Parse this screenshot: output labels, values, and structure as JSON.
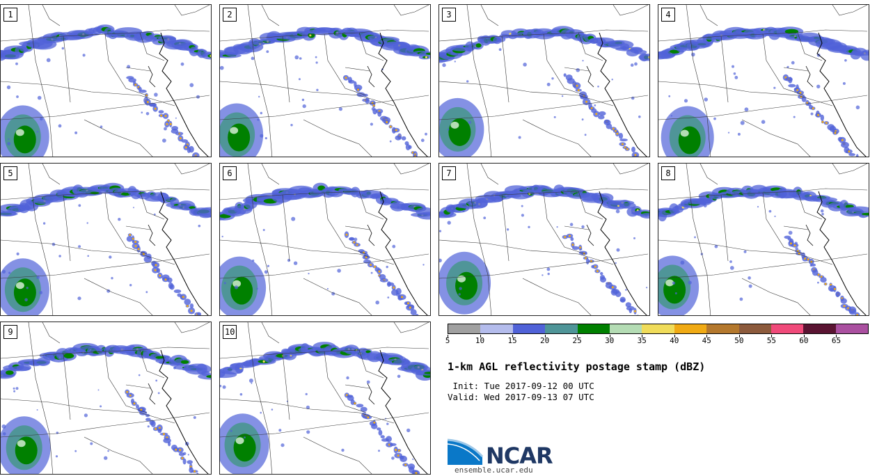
{
  "panels": [
    {
      "label": "1"
    },
    {
      "label": "2"
    },
    {
      "label": "3"
    },
    {
      "label": "4"
    },
    {
      "label": "5"
    },
    {
      "label": "6"
    },
    {
      "label": "7"
    },
    {
      "label": "8"
    },
    {
      "label": "9"
    },
    {
      "label": "10"
    }
  ],
  "colorbar": {
    "ticks": [
      "5",
      "10",
      "15",
      "20",
      "25",
      "30",
      "35",
      "40",
      "45",
      "50",
      "55",
      "60",
      "65"
    ],
    "colors": [
      "#a0a0a0",
      "#b4bcec",
      "#5062d8",
      "#4f9598",
      "#008000",
      "#b4dcb4",
      "#f0dc5a",
      "#f0aa14",
      "#b4782d",
      "#8c5a3c",
      "#f04a7a",
      "#5a1432",
      "#aa50a0"
    ]
  },
  "title": "1-km AGL reflectivity postage stamp (dBZ)",
  "init": " Init: Tue 2017-09-12 00 UTC",
  "valid": "Valid: Wed 2017-09-13 07 UTC",
  "logo": {
    "text": "NCAR",
    "url": "ensemble.ucar.edu"
  }
}
